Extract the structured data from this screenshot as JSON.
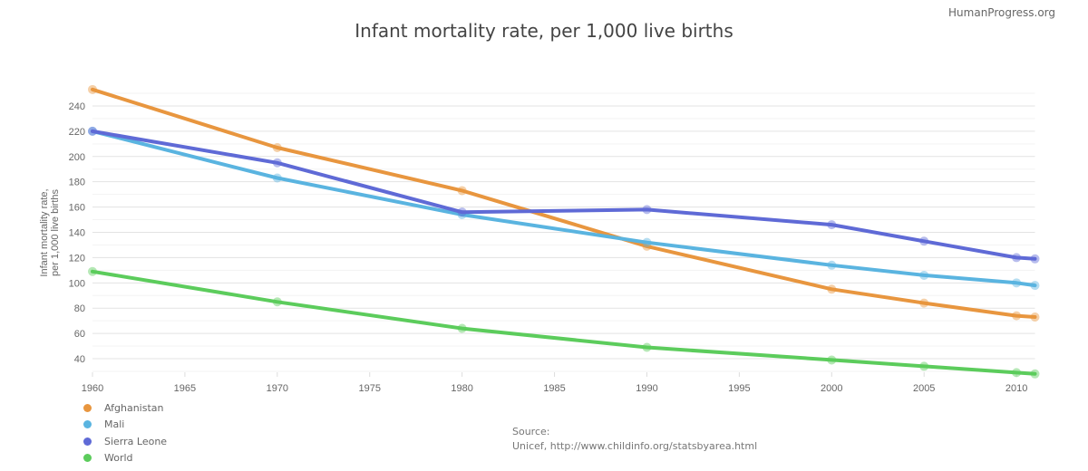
{
  "brand": "HumanProgress.org",
  "source": {
    "label": "Source:",
    "text": "Unicef, http://www.childinfo.org/statsbyarea.html"
  },
  "chart_data": {
    "type": "line",
    "title": "Infant mortality rate, per 1,000 live births",
    "xlabel": "",
    "ylabel": "Infant mortality rate, per 1,000 live births",
    "ylabel_lines": [
      "Infant mortality rate,",
      "per 1,000 live births"
    ],
    "x": [
      1960,
      1970,
      1980,
      1990,
      2000,
      2005,
      2010,
      2011
    ],
    "xlim": [
      1960,
      2011
    ],
    "ylim": [
      30,
      250
    ],
    "x_ticks": [
      1960,
      1965,
      1970,
      1975,
      1980,
      1985,
      1990,
      1995,
      2000,
      2005,
      2010
    ],
    "y_ticks": [
      40,
      60,
      80,
      100,
      120,
      140,
      160,
      180,
      200,
      220,
      240
    ],
    "grid": true,
    "legend_position": "bottom-left",
    "series": [
      {
        "name": "Afghanistan",
        "color": "#e8963f",
        "values": [
          253,
          207,
          173,
          129,
          95,
          84,
          74,
          73
        ]
      },
      {
        "name": "Mali",
        "color": "#5ab4e0",
        "values": [
          220,
          183,
          154,
          132,
          114,
          106,
          100,
          98
        ]
      },
      {
        "name": "Sierra Leone",
        "color": "#5f6ad6",
        "values": [
          220,
          195,
          156,
          158,
          146,
          133,
          120,
          119
        ]
      },
      {
        "name": "World",
        "color": "#5ccc5c",
        "values": [
          109,
          85,
          64,
          49,
          39,
          34,
          29,
          28
        ]
      }
    ]
  }
}
